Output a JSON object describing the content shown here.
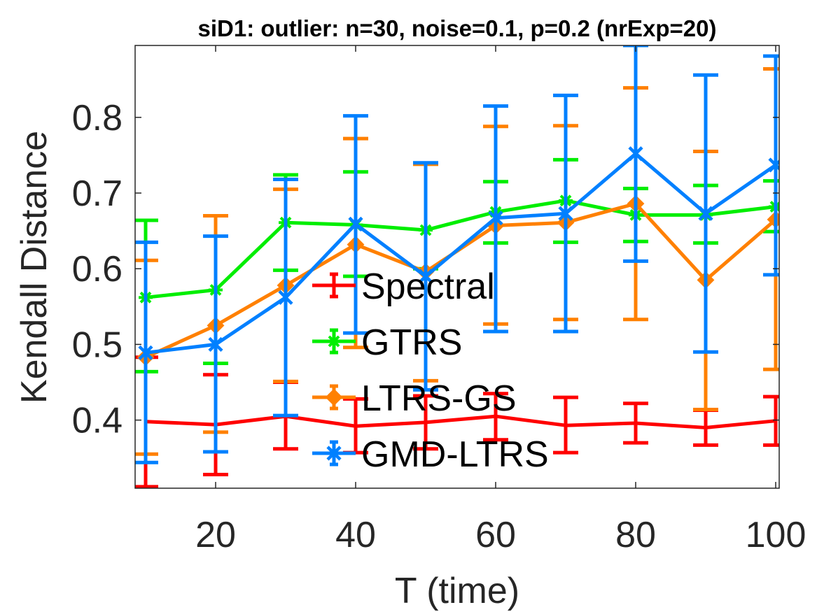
{
  "chart_data": {
    "type": "line",
    "title": "siD1: outlier: n=30, noise=0.1, p=0.2 (nrExp=20)",
    "xlabel": "T (time)",
    "ylabel": "Kendall Distance",
    "xlim": [
      8.5,
      100.5
    ],
    "ylim": [
      0.31,
      0.895
    ],
    "xticks": [
      20,
      40,
      60,
      80,
      100
    ],
    "yticks": [
      0.4,
      0.5,
      0.6,
      0.7,
      0.8
    ],
    "xtick_labels": [
      "20",
      "40",
      "60",
      "80",
      "100"
    ],
    "ytick_labels": [
      "0.4",
      "0.5",
      "0.6",
      "0.7",
      "0.8"
    ],
    "grid": false,
    "legend_position": "center",
    "x": [
      10,
      20,
      30,
      40,
      50,
      60,
      70,
      80,
      90,
      100
    ],
    "series": [
      {
        "name": "Spectral",
        "color": "#ff0000",
        "marker": "none",
        "values": [
          0.398,
          0.394,
          0.405,
          0.392,
          0.397,
          0.405,
          0.393,
          0.396,
          0.39,
          0.399
        ],
        "err_low": [
          0.312,
          0.328,
          0.362,
          0.357,
          0.362,
          0.374,
          0.357,
          0.37,
          0.367,
          0.367
        ],
        "err_high": [
          0.483,
          0.46,
          0.45,
          0.428,
          0.432,
          0.435,
          0.43,
          0.422,
          0.413,
          0.431
        ]
      },
      {
        "name": "GTRS",
        "color": "#00ee00",
        "marker": "star",
        "values": [
          0.562,
          0.572,
          0.661,
          0.658,
          0.651,
          0.675,
          0.69,
          0.671,
          0.671,
          0.682
        ],
        "err_low": [
          0.464,
          0.475,
          0.598,
          0.59,
          0.6,
          0.634,
          0.635,
          0.636,
          0.634,
          0.649
        ],
        "err_high": [
          0.664,
          0.67,
          0.724,
          0.728,
          0.739,
          0.715,
          0.744,
          0.706,
          0.71,
          0.716
        ]
      },
      {
        "name": "LTRS-GS",
        "color": "#ff8000",
        "marker": "diamond",
        "values": [
          0.483,
          0.525,
          0.578,
          0.632,
          0.596,
          0.657,
          0.661,
          0.686,
          0.585,
          0.665
        ],
        "err_low": [
          0.355,
          0.384,
          0.451,
          0.496,
          0.452,
          0.527,
          0.533,
          0.533,
          0.414,
          0.467
        ],
        "err_high": [
          0.611,
          0.67,
          0.705,
          0.772,
          0.738,
          0.788,
          0.789,
          0.839,
          0.755,
          0.864
        ]
      },
      {
        "name": "GMD-LTRS",
        "color": "#0080ff",
        "marker": "x",
        "values": [
          0.489,
          0.5,
          0.562,
          0.659,
          0.59,
          0.667,
          0.673,
          0.752,
          0.673,
          0.737
        ],
        "err_low": [
          0.344,
          0.358,
          0.406,
          0.515,
          0.44,
          0.517,
          0.517,
          0.61,
          0.49,
          0.592
        ],
        "err_high": [
          0.635,
          0.643,
          0.718,
          0.802,
          0.74,
          0.815,
          0.829,
          0.895,
          0.856,
          0.881
        ]
      }
    ]
  }
}
